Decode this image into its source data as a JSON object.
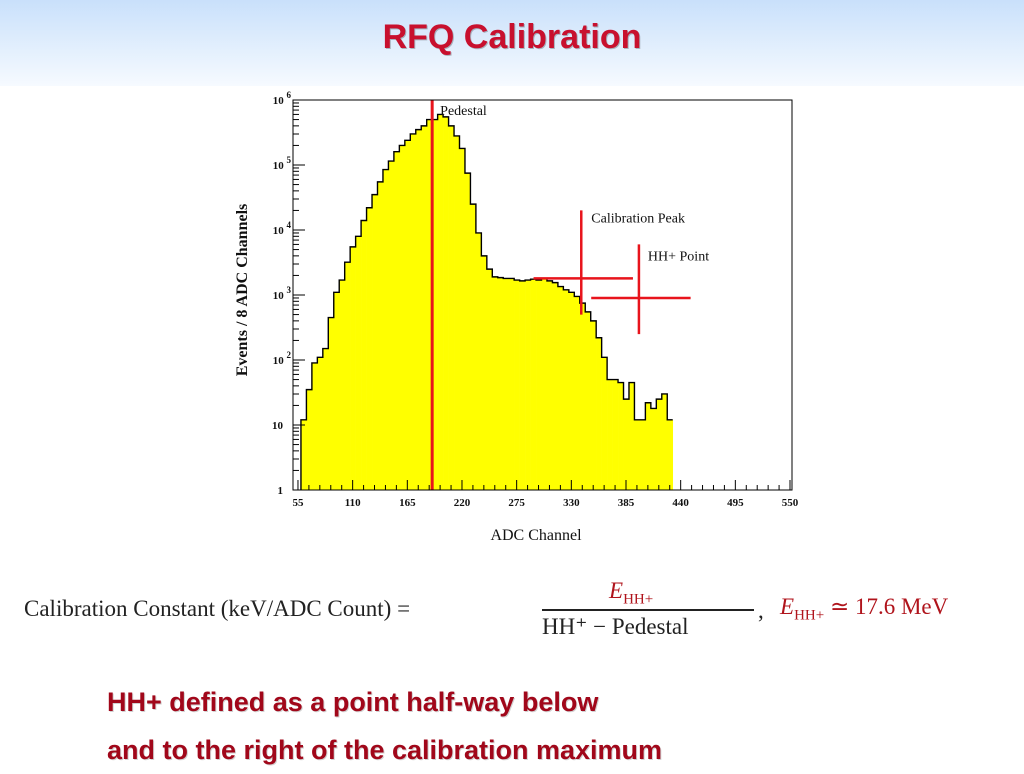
{
  "slide": {
    "title": "RFQ Calibration",
    "caption_lines": [
      "HH+ defined as a point half-way below",
      "and to the right of the calibration maximum"
    ],
    "title_color": "#c8102e",
    "caption_color": "#a1071a"
  },
  "formula": {
    "lhs": "Calibration Constant (keV/ADC Count) =",
    "numerator": "E",
    "numerator_sub": "HH+",
    "denominator": "HH⁺ − Pedestal",
    "comma": ",",
    "energy_symbol": "E",
    "energy_sub": "HH+",
    "energy_value": "≃ 17.6 MeV"
  },
  "chart_data": {
    "type": "bar",
    "xlabel": "ADC Channel",
    "ylabel": "Events / 8 ADC Channels",
    "xlim": [
      50,
      552
    ],
    "ylog": true,
    "ylim": [
      1,
      1000000
    ],
    "xticks": [
      55,
      110,
      165,
      220,
      275,
      330,
      385,
      440,
      495,
      550
    ],
    "yticks": [
      {
        "base": "1",
        "exp": "",
        "value": 1
      },
      {
        "base": "10",
        "exp": "",
        "value": 10
      },
      {
        "base": "10",
        "exp": "2",
        "value": 100
      },
      {
        "base": "10",
        "exp": "3",
        "value": 1000
      },
      {
        "base": "10",
        "exp": "4",
        "value": 10000
      },
      {
        "base": "10",
        "exp": "5",
        "value": 100000
      },
      {
        "base": "10",
        "exp": "6",
        "value": 1000000
      }
    ],
    "bin_start": 58,
    "bin_width": 5.5,
    "values": [
      12,
      35,
      90,
      110,
      150,
      450,
      1100,
      1700,
      3200,
      5500,
      8000,
      14000,
      22000,
      35000,
      55000,
      85000,
      115000,
      160000,
      200000,
      240000,
      300000,
      350000,
      400000,
      500000,
      500000,
      600000,
      550000,
      400000,
      280000,
      180000,
      75000,
      25000,
      9000,
      4000,
      2500,
      1900,
      1850,
      1800,
      1800,
      1700,
      1650,
      1700,
      1750,
      1700,
      1800,
      1650,
      1550,
      1350,
      1200,
      1100,
      950,
      750,
      550,
      400,
      220,
      110,
      50,
      50,
      45,
      25,
      45,
      12,
      12,
      22,
      18,
      25,
      30,
      12
    ],
    "fill_color": "#ffff00",
    "marker_color": "#e8141c",
    "markers": {
      "pedestal": {
        "label": "Pedestal",
        "x": 190
      },
      "calibration_peak": {
        "label": "Calibration Peak",
        "x": 340,
        "y": 1800,
        "x_range": [
          292,
          392
        ],
        "y_range": [
          500,
          20000
        ]
      },
      "hh_point": {
        "label": "HH+ Point",
        "x": 398,
        "y": 900,
        "x_range": [
          350,
          450
        ],
        "y_range": [
          250,
          6000
        ]
      }
    }
  }
}
